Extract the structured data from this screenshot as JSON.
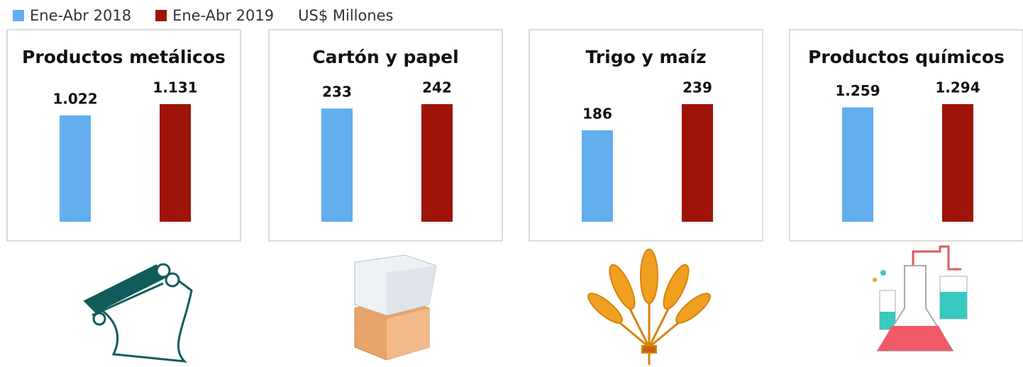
{
  "legend": {
    "items": [
      {
        "name": "Ene-Abr 2018",
        "color": "#62aeee"
      },
      {
        "name": "Ene-Abr 2019",
        "color": "#9e1408"
      }
    ],
    "unit": "US$ Millones"
  },
  "chart_data": [
    {
      "type": "bar",
      "title": "Productos metálicos",
      "values": [
        1022,
        1131
      ],
      "value_labels": [
        "1.022",
        "1.131"
      ]
    },
    {
      "type": "bar",
      "title": "Cartón y papel",
      "values": [
        233,
        242
      ],
      "value_labels": [
        "233",
        "242"
      ]
    },
    {
      "type": "bar",
      "title": "Trigo y maíz",
      "values": [
        186,
        239
      ],
      "value_labels": [
        "186",
        "239"
      ]
    },
    {
      "type": "bar",
      "title": "Productos químicos",
      "values": [
        1259,
        1294
      ],
      "value_labels": [
        "1.259",
        "1.294"
      ]
    }
  ]
}
